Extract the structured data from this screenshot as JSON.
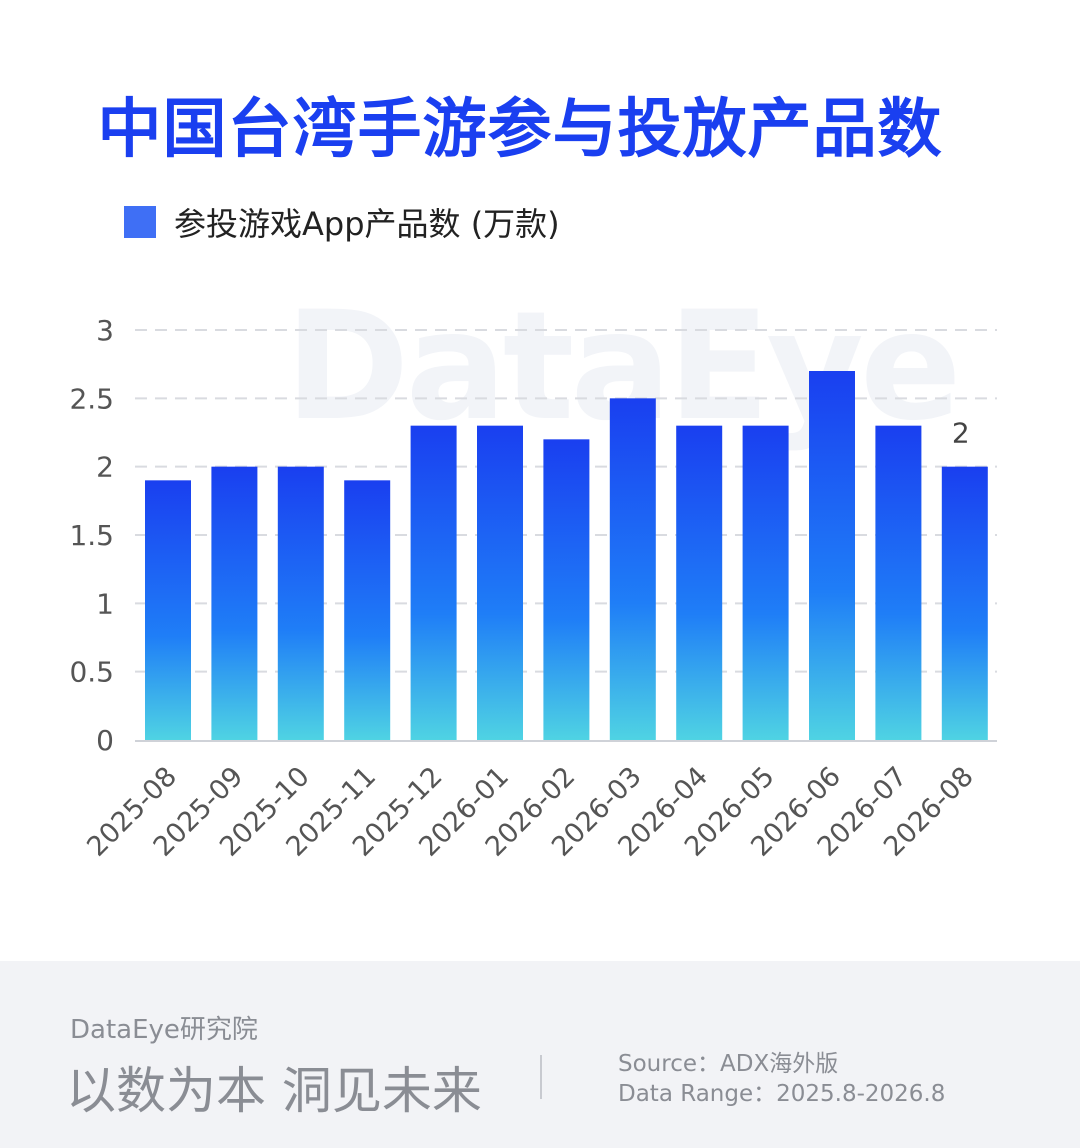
{
  "title": "中国台湾手游参与投放产品数",
  "legend": {
    "label": "参投游戏App产品数 (万款)",
    "color": "#3f6ff5"
  },
  "watermark": "DataEye",
  "chart_data": {
    "type": "bar",
    "categories": [
      "2025-08",
      "2025-09",
      "2025-10",
      "2025-11",
      "2025-12",
      "2026-01",
      "2026-02",
      "2026-03",
      "2026-04",
      "2026-05",
      "2026-06",
      "2026-07",
      "2026-08"
    ],
    "series": [
      {
        "name": "参投游戏App产品数 (万款)",
        "values": [
          1.9,
          2.0,
          2.0,
          1.9,
          2.3,
          2.3,
          2.2,
          2.5,
          2.3,
          2.3,
          2.7,
          2.3,
          2.0
        ]
      }
    ],
    "ylim": [
      0,
      3
    ],
    "yticks": [
      "0",
      "0.5",
      "1",
      "1.5",
      "2",
      "2.5",
      "3"
    ],
    "data_labels": [
      {
        "index": 12,
        "text": "2"
      }
    ],
    "grid": true,
    "bar_gradient": {
      "top": "#1a3ff0",
      "middle": "#1f7ef7",
      "bottom": "#4fd3e3"
    }
  },
  "footer": {
    "brand": "DataEye研究院",
    "slogan": "以数为本 洞见未来",
    "source": "Source：ADX海外版",
    "range": "Data Range：2025.8-2026.8"
  }
}
